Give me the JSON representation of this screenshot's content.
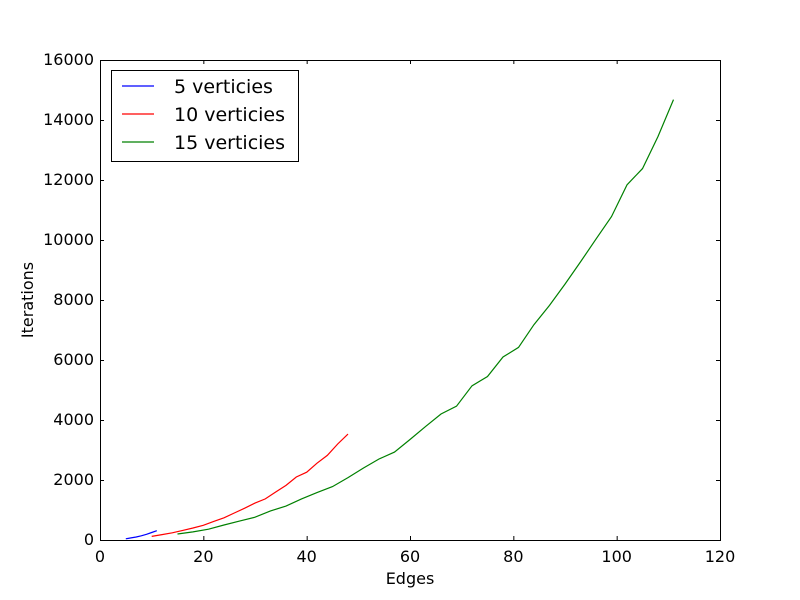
{
  "chart_data": {
    "type": "line",
    "xlabel": "Edges",
    "ylabel": "Iterations",
    "xlim": [
      0,
      120
    ],
    "ylim": [
      0,
      16000
    ],
    "xticks": [
      0,
      20,
      40,
      60,
      80,
      100,
      120
    ],
    "yticks": [
      0,
      2000,
      4000,
      6000,
      8000,
      10000,
      12000,
      14000,
      16000
    ],
    "grid": false,
    "legend_position": "top-left",
    "series": [
      {
        "name": "5 verticies",
        "color": "#0000ff",
        "x": [
          5,
          6,
          7,
          8,
          9,
          10,
          11
        ],
        "y": [
          40,
          70,
          100,
          140,
          190,
          250,
          310
        ]
      },
      {
        "name": "10 verticies",
        "color": "#ff0000",
        "x": [
          10,
          12,
          14,
          16,
          18,
          20,
          22,
          24,
          26,
          28,
          30,
          32,
          34,
          36,
          38,
          40,
          42,
          44,
          46,
          48
        ],
        "y": [
          120,
          180,
          240,
          320,
          400,
          490,
          620,
          740,
          900,
          1060,
          1230,
          1370,
          1600,
          1820,
          2100,
          2260,
          2560,
          2820,
          3200,
          3530
        ]
      },
      {
        "name": "15 verticies",
        "color": "#008000",
        "x": [
          15,
          18,
          21,
          24,
          27,
          30,
          33,
          36,
          39,
          42,
          45,
          48,
          51,
          54,
          57,
          60,
          63,
          66,
          69,
          72,
          75,
          78,
          81,
          84,
          87,
          90,
          93,
          96,
          99,
          102,
          105,
          108,
          111
        ],
        "y": [
          200,
          270,
          360,
          500,
          630,
          760,
          970,
          1130,
          1370,
          1580,
          1780,
          2080,
          2400,
          2700,
          2930,
          3350,
          3780,
          4200,
          4460,
          5140,
          5450,
          6100,
          6420,
          7180,
          7820,
          8530,
          9270,
          10030,
          10780,
          11840,
          12380,
          13450,
          14680
        ]
      }
    ]
  }
}
